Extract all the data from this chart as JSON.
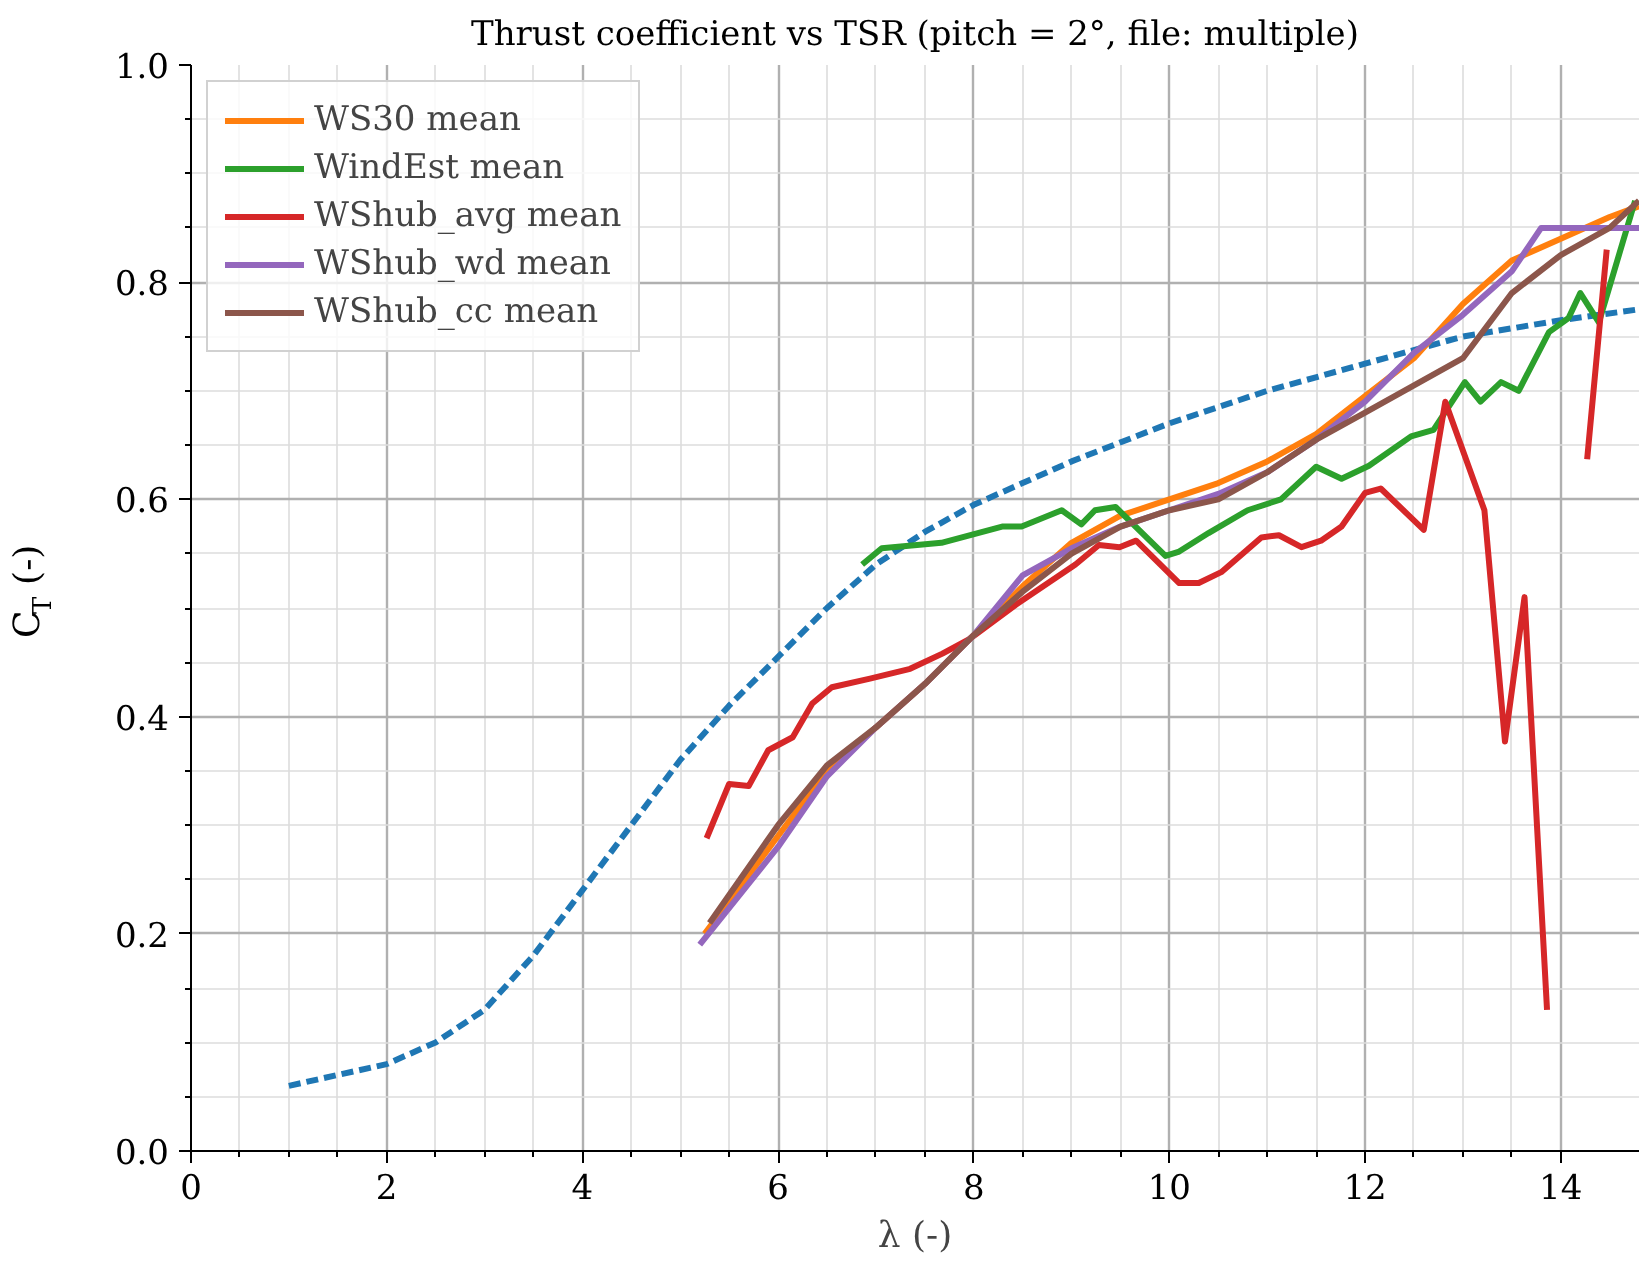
{
  "chart_data": {
    "type": "line",
    "title": "Thrust coefficient vs TSR (pitch = 2°, file: multiple)",
    "xlabel": "λ (-)",
    "ylabel": "C$_{T}$ (-)",
    "xlim": [
      0,
      14.8
    ],
    "ylim": [
      0,
      1.0
    ],
    "xticks": [
      0,
      2,
      4,
      6,
      8,
      10,
      12,
      14
    ],
    "yticks": [
      {
        "value": 0,
        "label": "0.0"
      },
      0.2,
      0.4,
      0.6,
      0.8,
      {
        "value": 1.0,
        "label": "1.0"
      }
    ],
    "grid": true,
    "legend": "top left",
    "series": [
      {
        "color": "#1f77b4",
        "line_style": "dashed",
        "x": [
          1,
          2,
          2.5,
          3,
          3.5,
          4,
          4.5,
          5,
          5.5,
          6,
          6.5,
          7,
          7.5,
          8,
          8.5,
          9,
          10,
          11,
          12,
          13,
          14,
          14.8
        ],
        "values": [
          0.06,
          0.08,
          0.1,
          0.13,
          0.18,
          0.24,
          0.3,
          0.36,
          0.41,
          0.455,
          0.5,
          0.54,
          0.57,
          0.595,
          0.615,
          0.635,
          0.67,
          0.7,
          0.725,
          0.75,
          0.765,
          0.775
        ]
      },
      {
        "name": "WS30 mean",
        "color": "#ff7f0e",
        "x": [
          5.25,
          6,
          6.5,
          7,
          7.5,
          8,
          8.5,
          9,
          9.5,
          10,
          10.5,
          11,
          11.5,
          12,
          12.5,
          13,
          13.5,
          14,
          14.5,
          14.8
        ],
        "values": [
          0.2,
          0.29,
          0.35,
          0.39,
          0.43,
          0.475,
          0.52,
          0.56,
          0.585,
          0.6,
          0.615,
          0.635,
          0.66,
          0.695,
          0.73,
          0.78,
          0.82,
          0.84,
          0.86,
          0.87
        ]
      },
      {
        "name": "WindEst mean",
        "color": "#2ca02c",
        "x": [
          6.86,
          7.06,
          7.67,
          8.29,
          8.49,
          8.9,
          9.1,
          9.24,
          9.45,
          9.96,
          10.1,
          10.4,
          10.8,
          11.14,
          11.5,
          11.76,
          12.04,
          12.47,
          12.7,
          13.02,
          13.18,
          13.39,
          13.57,
          13.88,
          14.08,
          14.2,
          14.39,
          14.76
        ],
        "values": [
          0.54,
          0.555,
          0.56,
          0.575,
          0.575,
          0.59,
          0.577,
          0.59,
          0.593,
          0.548,
          0.552,
          0.569,
          0.59,
          0.6,
          0.63,
          0.619,
          0.631,
          0.658,
          0.664,
          0.708,
          0.69,
          0.708,
          0.7,
          0.754,
          0.767,
          0.79,
          0.763,
          0.875
        ]
      },
      {
        "name": "WShub_avg mean",
        "color": "#d62728",
        "x": [
          5.27,
          5.5,
          5.7,
          5.9,
          6.15,
          6.35,
          6.55,
          6.94,
          7.35,
          7.68,
          7.95,
          8.43,
          9.04,
          9.28,
          9.49,
          9.66,
          10.1,
          10.3,
          10.53,
          10.94,
          11.12,
          11.35,
          11.55,
          11.76,
          12.0,
          12.16,
          12.6,
          12.82,
          13.22,
          13.43,
          13.63,
          13.86,
          14.05,
          14.27,
          14.47
        ],
        "values": [
          0.288,
          0.338,
          0.336,
          0.369,
          0.381,
          0.412,
          0.427,
          0.435,
          0.444,
          0.458,
          0.471,
          0.503,
          0.54,
          0.558,
          0.556,
          0.562,
          0.523,
          0.523,
          0.533,
          0.565,
          0.567,
          0.556,
          0.562,
          0.575,
          0.606,
          0.61,
          0.572,
          0.69,
          0.59,
          0.377,
          0.51,
          0.13,
          null,
          0.637,
          0.83
        ]
      },
      {
        "name": "WShub_wd mean",
        "color": "#9467bd",
        "x": [
          5.2,
          6,
          6.5,
          7,
          7.5,
          8,
          8.5,
          9,
          9.5,
          10,
          10.5,
          11,
          11.5,
          12,
          12.5,
          13,
          13.5,
          13.8,
          14.8
        ],
        "values": [
          0.19,
          0.28,
          0.345,
          0.39,
          0.43,
          0.475,
          0.53,
          0.555,
          0.575,
          0.59,
          0.605,
          0.625,
          0.655,
          0.69,
          0.735,
          0.77,
          0.81,
          0.85,
          0.85
        ]
      },
      {
        "name": "WShub_cc mean",
        "color": "#8c564b",
        "x": [
          5.3,
          6,
          6.5,
          7,
          7.5,
          8,
          8.5,
          9,
          9.5,
          10,
          10.5,
          11,
          11.5,
          12,
          12.5,
          13,
          13.5,
          14,
          14.5,
          14.8
        ],
        "values": [
          0.21,
          0.3,
          0.355,
          0.39,
          0.43,
          0.475,
          0.515,
          0.55,
          0.575,
          0.59,
          0.6,
          0.625,
          0.655,
          0.68,
          0.705,
          0.73,
          0.79,
          0.825,
          0.85,
          0.875
        ]
      }
    ]
  }
}
